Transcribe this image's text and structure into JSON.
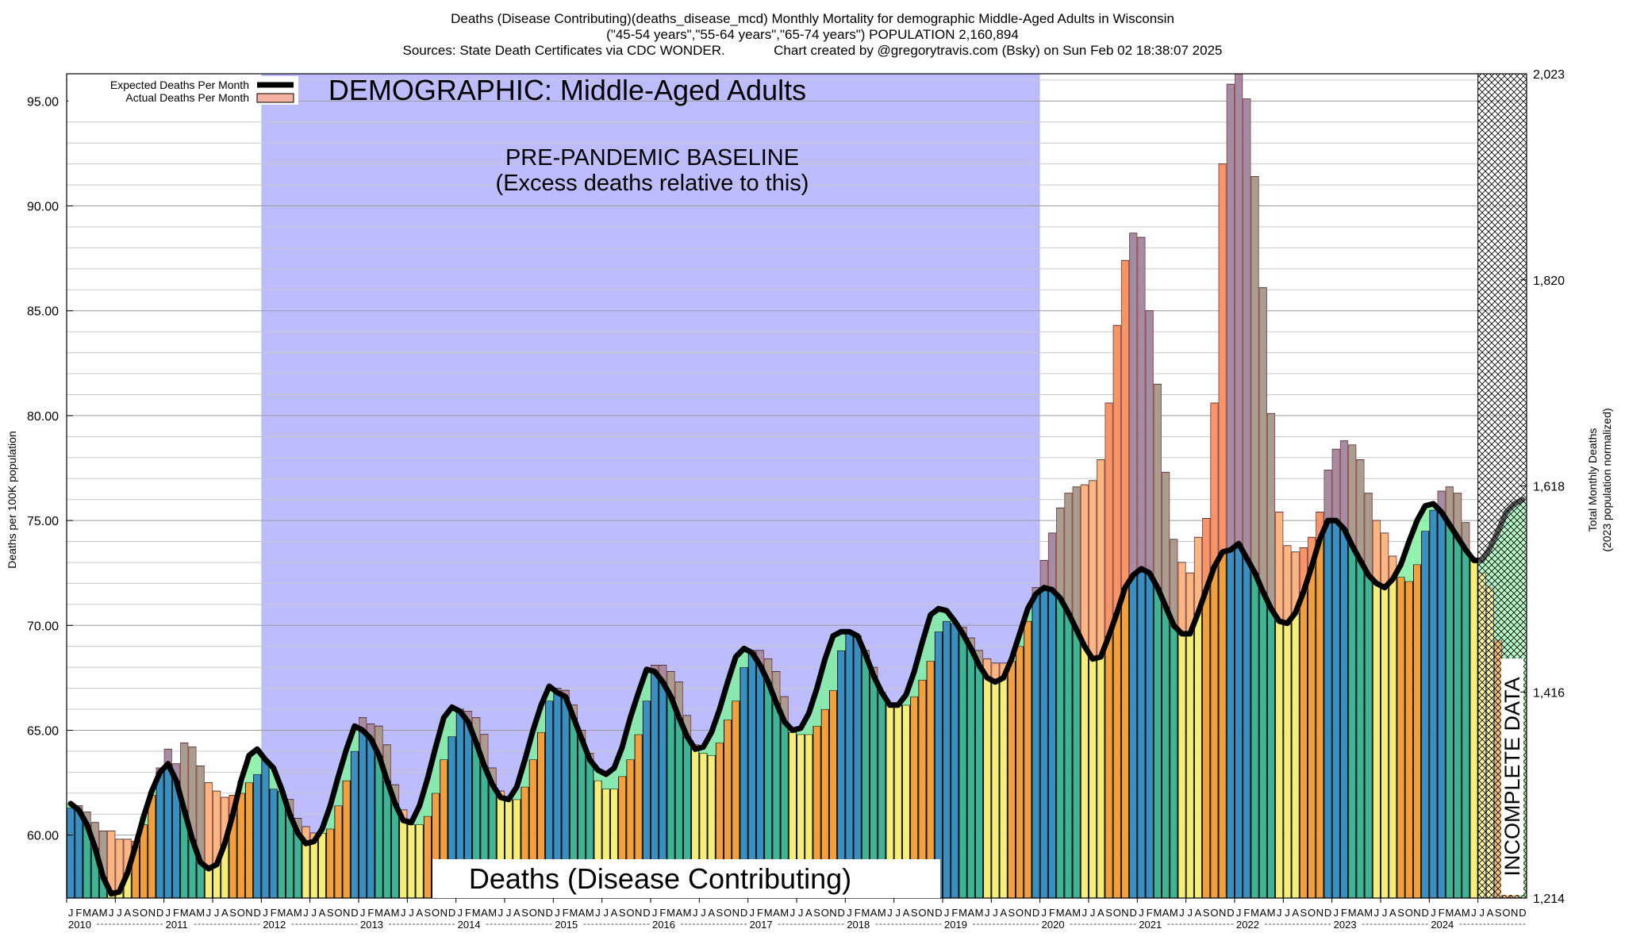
{
  "header": {
    "line1": "Deaths (Disease Contributing)(deaths_disease_mcd) Monthly Mortality for demographic Middle-Aged Adults in Wisconsin",
    "line2": "(\"45-54 years\",\"55-64 years\",\"65-74 years\") POPULATION 2,160,894",
    "line3": "Sources: State Death Certificates via CDC WONDER.             Chart created by @gregorytravis.com (Bsky) on Sun Feb 02 18:38:07 2025"
  },
  "legend": {
    "expected_label": "Expected Deaths Per Month",
    "actual_label": "Actual Deaths Per Month"
  },
  "annotations": {
    "demographic": "DEMOGRAPHIC: Middle-Aged Adults",
    "baseline_line1": "PRE-PANDEMIC BASELINE",
    "baseline_line2": "(Excess deaths relative to this)",
    "bottom_label": "Deaths (Disease Contributing)",
    "incomplete": "INCOMPLETE DATA"
  },
  "colors": {
    "baseline_shade": "#bcbcff",
    "expected_line": "#000000",
    "excess_fill": "#ff8a8a",
    "deficit_fill": "#7ff0a0",
    "bar_winter": "#3a8fc0",
    "bar_spring": "#3fb394",
    "bar_summer": "#f5ee78",
    "bar_fall": "#f2a03d"
  },
  "chart_data": {
    "type": "bar",
    "title": "Deaths (Disease Contributing)(deaths_disease_mcd) Monthly Mortality for demographic Middle-Aged Adults in Wisconsin",
    "ylabel_left": "Deaths per 100K population",
    "ylabel_right_line1": "Total Monthly Deaths",
    "ylabel_right_line2": "(2023 population normalized)",
    "ylim": [
      57.0,
      96.3
    ],
    "y_ticks": [
      "60.00",
      "65.00",
      "70.00",
      "75.00",
      "80.00",
      "85.00",
      "90.00",
      "95.00"
    ],
    "y_right_ticks": [
      "1,214",
      "1,416",
      "1,618",
      "1,820",
      "2,023"
    ],
    "month_letters": [
      "J",
      "F",
      "M",
      "A",
      "M",
      "J",
      "J",
      "A",
      "S",
      "O",
      "N",
      "D"
    ],
    "years": [
      "2010",
      "2011",
      "2012",
      "2013",
      "2014",
      "2015",
      "2016",
      "2017",
      "2018",
      "2019",
      "2020",
      "2021",
      "2022",
      "2023",
      "2024"
    ],
    "baseline_period": [
      "2012-01",
      "2019-12"
    ],
    "incomplete_from": "2024-07",
    "grid": true,
    "legend_position": "top-left",
    "series": [
      {
        "name": "Actual Deaths Per Month",
        "values": [
          61.3,
          61.4,
          61.1,
          60.6,
          60.2,
          60.2,
          59.8,
          59.8,
          59.7,
          60.5,
          61.9,
          63.2,
          64.1,
          63.4,
          64.4,
          64.2,
          63.3,
          62.5,
          62.1,
          61.8,
          61.9,
          62.0,
          62.5,
          62.9,
          63.6,
          62.2,
          62.1,
          61.7,
          60.8,
          60.4,
          60.1,
          60.1,
          60.3,
          61.4,
          62.6,
          64.0,
          65.6,
          65.3,
          65.2,
          64.3,
          62.4,
          61.2,
          60.5,
          60.5,
          60.9,
          62.0,
          63.6,
          64.7,
          66.0,
          65.9,
          65.6,
          64.8,
          63.2,
          62.1,
          61.8,
          61.7,
          62.3,
          63.6,
          64.9,
          66.4,
          67.0,
          66.9,
          66.2,
          65.0,
          63.9,
          62.6,
          62.2,
          62.2,
          62.8,
          63.6,
          64.8,
          66.4,
          68.1,
          68.1,
          67.8,
          67.3,
          65.7,
          64.3,
          63.9,
          63.8,
          64.4,
          65.5,
          66.4,
          68.0,
          68.8,
          68.8,
          68.4,
          67.8,
          66.6,
          64.9,
          64.8,
          64.8,
          65.2,
          66.0,
          66.9,
          68.8,
          69.6,
          69.5,
          68.8,
          68.0,
          66.8,
          66.3,
          66.2,
          66.2,
          66.6,
          67.4,
          68.3,
          69.7,
          70.2,
          70.1,
          69.9,
          69.4,
          68.8,
          68.4,
          68.2,
          68.2,
          68.3,
          69.0,
          70.2,
          71.8,
          73.1,
          74.4,
          75.6,
          76.3,
          76.6,
          76.7,
          76.9,
          77.9,
          80.6,
          84.3,
          87.4,
          88.7,
          88.5,
          85.0,
          81.5,
          77.3,
          74.1,
          73.0,
          72.5,
          74.2,
          75.1,
          80.6,
          92.0,
          95.8,
          96.3,
          95.1,
          91.4,
          86.1,
          80.1,
          75.4,
          73.8,
          73.5,
          73.7,
          74.2,
          75.4,
          77.4,
          78.4,
          78.8,
          78.6,
          77.9,
          76.3,
          75.0,
          74.4,
          73.3,
          72.3,
          72.1,
          72.9,
          74.5,
          75.5,
          76.4,
          76.6,
          76.3,
          74.9,
          73.1,
          72.5,
          71.8,
          69.3,
          68.2,
          68.0
        ]
      },
      {
        "name": "Expected Deaths Per Month",
        "values": [
          61.5,
          61.2,
          60.5,
          59.4,
          58.0,
          57.2,
          57.3,
          58.2,
          59.5,
          60.9,
          62.1,
          63.0,
          63.4,
          62.6,
          61.2,
          59.8,
          58.7,
          58.4,
          58.6,
          59.6,
          61.0,
          62.6,
          63.8,
          64.1,
          63.6,
          63.2,
          62.2,
          61.0,
          60.1,
          59.6,
          59.7,
          60.3,
          61.4,
          62.8,
          64.1,
          65.2,
          65.0,
          64.6,
          63.8,
          62.6,
          61.5,
          60.7,
          60.6,
          61.4,
          62.7,
          64.2,
          65.6,
          66.1,
          65.9,
          65.4,
          64.4,
          63.3,
          62.4,
          61.8,
          61.7,
          62.3,
          63.6,
          65.0,
          66.2,
          67.1,
          66.8,
          66.6,
          65.6,
          64.6,
          63.6,
          63.1,
          62.9,
          63.2,
          64.2,
          65.6,
          66.8,
          67.9,
          67.8,
          67.3,
          66.6,
          65.6,
          64.7,
          64.1,
          64.2,
          64.9,
          66.0,
          67.3,
          68.5,
          68.9,
          68.7,
          68.1,
          67.3,
          66.3,
          65.4,
          65.0,
          65.1,
          65.8,
          67.0,
          68.4,
          69.5,
          69.7,
          69.7,
          69.5,
          68.6,
          67.6,
          66.8,
          66.2,
          66.2,
          66.7,
          67.8,
          69.2,
          70.5,
          70.8,
          70.7,
          70.2,
          69.6,
          68.9,
          68.1,
          67.5,
          67.3,
          67.5,
          68.4,
          69.6,
          70.8,
          71.5,
          71.8,
          71.7,
          71.3,
          70.6,
          69.8,
          69.0,
          68.4,
          68.5,
          69.5,
          70.6,
          71.8,
          72.4,
          72.7,
          72.5,
          71.8,
          70.9,
          70.0,
          69.6,
          69.6,
          70.6,
          71.7,
          72.8,
          73.5,
          73.6,
          73.9,
          73.2,
          72.5,
          71.6,
          70.8,
          70.2,
          70.1,
          70.6,
          71.6,
          72.8,
          74.1,
          75.0,
          75.0,
          74.6,
          73.8,
          73.1,
          72.4,
          72.0,
          71.8,
          72.2,
          72.9,
          74.0,
          75.0,
          75.7,
          75.8,
          75.4,
          74.8,
          74.2,
          73.6,
          73.1,
          73.1,
          73.7,
          74.5,
          75.4,
          75.8,
          76.0
        ]
      }
    ]
  }
}
